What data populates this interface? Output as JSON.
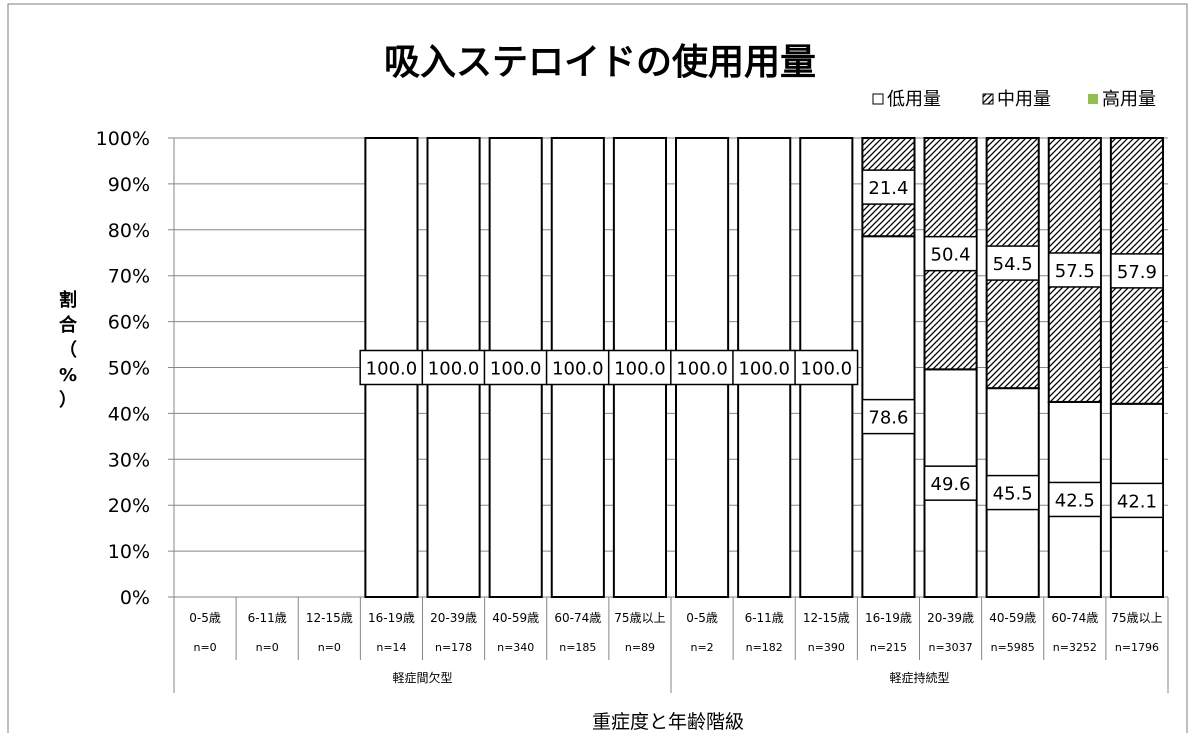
{
  "chart_data": {
    "type": "bar",
    "stacked": true,
    "percent": true,
    "title": "吸入ステロイドの使用用量",
    "xlabel": "重症度と年齢階級",
    "ylabel": "割合（%）",
    "ylim": [
      0,
      100
    ],
    "yticks": [
      "0%",
      "10%",
      "20%",
      "30%",
      "40%",
      "50%",
      "60%",
      "70%",
      "80%",
      "90%",
      "100%"
    ],
    "legend_position": "top-right",
    "grid": true,
    "categories": [
      {
        "age": "0-5歳",
        "n": "n=0",
        "group": "軽症間欠型"
      },
      {
        "age": "6-11歳",
        "n": "n=0",
        "group": "軽症間欠型"
      },
      {
        "age": "12-15歳",
        "n": "n=0",
        "group": "軽症間欠型"
      },
      {
        "age": "16-19歳",
        "n": "n=14",
        "group": "軽症間欠型"
      },
      {
        "age": "20-39歳",
        "n": "n=178",
        "group": "軽症間欠型"
      },
      {
        "age": "40-59歳",
        "n": "n=340",
        "group": "軽症間欠型"
      },
      {
        "age": "60-74歳",
        "n": "n=185",
        "group": "軽症間欠型"
      },
      {
        "age": "75歳以上",
        "n": "n=89",
        "group": "軽症間欠型"
      },
      {
        "age": "0-5歳",
        "n": "n=2",
        "group": "軽症持続型"
      },
      {
        "age": "6-11歳",
        "n": "n=182",
        "group": "軽症持続型"
      },
      {
        "age": "12-15歳",
        "n": "n=390",
        "group": "軽症持続型"
      },
      {
        "age": "16-19歳",
        "n": "n=215",
        "group": "軽症持続型"
      },
      {
        "age": "20-39歳",
        "n": "n=3037",
        "group": "軽症持続型"
      },
      {
        "age": "40-59歳",
        "n": "n=5985",
        "group": "軽症持続型"
      },
      {
        "age": "60-74歳",
        "n": "n=3252",
        "group": "軽症持続型"
      },
      {
        "age": "75歳以上",
        "n": "n=1796",
        "group": "軽症持続型"
      }
    ],
    "groups": [
      "軽症間欠型",
      "軽症持続型"
    ],
    "series": [
      {
        "name": "低用量",
        "color": "#ffffff",
        "pattern": "none",
        "values": [
          null,
          null,
          null,
          100.0,
          100.0,
          100.0,
          100.0,
          100.0,
          100.0,
          100.0,
          100.0,
          78.6,
          49.6,
          45.5,
          42.5,
          42.1
        ],
        "labels": [
          "",
          "",
          "",
          "100.0",
          "100.0",
          "100.0",
          "100.0",
          "100.0",
          "100.0",
          "100.0",
          "100.0",
          "78.6",
          "49.6",
          "45.5",
          "42.5",
          "42.1"
        ]
      },
      {
        "name": "中用量",
        "color": "#000000",
        "pattern": "diagonal-hatch",
        "values": [
          null,
          null,
          null,
          0,
          0,
          0,
          0,
          0,
          0,
          0,
          0,
          21.4,
          50.4,
          54.5,
          57.5,
          57.9
        ],
        "labels": [
          "",
          "",
          "",
          "",
          "",
          "",
          "",
          "",
          "",
          "",
          "",
          "21.4",
          "50.4",
          "54.5",
          "57.5",
          "57.9"
        ]
      },
      {
        "name": "高用量",
        "color": "#92c050",
        "pattern": "solid",
        "values": [
          null,
          null,
          null,
          0,
          0,
          0,
          0,
          0,
          0,
          0,
          0,
          0,
          0,
          0,
          0,
          0
        ],
        "labels": [
          "",
          "",
          "",
          "",
          "",
          "",
          "",
          "",
          "",
          "",
          "",
          "",
          "",
          "",
          "",
          ""
        ]
      }
    ]
  }
}
